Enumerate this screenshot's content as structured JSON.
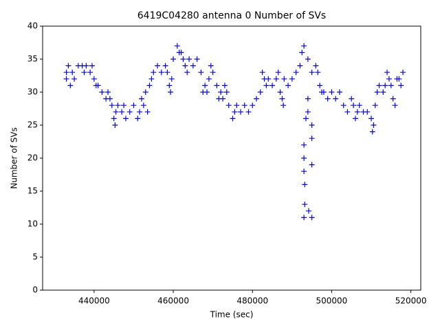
{
  "chart_data": {
    "type": "scatter",
    "title": "6419C04280 antenna 0 Number of SVs",
    "xlabel": "Time (sec)",
    "ylabel": "Number of SVs",
    "marker": "+",
    "color": "#0000ff",
    "xlim": [
      427000,
      522500
    ],
    "ylim": [
      0,
      40
    ],
    "xticks": [
      440000,
      460000,
      480000,
      500000,
      520000
    ],
    "yticks": [
      0,
      5,
      10,
      15,
      20,
      25,
      30,
      35,
      40
    ],
    "x": [
      433000,
      433000,
      433500,
      434000,
      434500,
      435000,
      436000,
      437000,
      437500,
      438000,
      439000,
      439500,
      440000,
      440500,
      441000,
      442000,
      443000,
      443500,
      444000,
      444500,
      445000,
      445300,
      445500,
      446000,
      447000,
      447500,
      448000,
      449000,
      450000,
      451000,
      451500,
      452000,
      452500,
      453000,
      453500,
      454000,
      454500,
      455000,
      456000,
      457000,
      458000,
      458500,
      459000,
      459300,
      459600,
      460000,
      461000,
      461500,
      462000,
      462500,
      463000,
      463500,
      464000,
      465000,
      466000,
      467000,
      467500,
      468000,
      468500,
      469000,
      469500,
      470000,
      471000,
      471500,
      472000,
      472500,
      473000,
      473500,
      474000,
      475000,
      475500,
      476000,
      477000,
      478000,
      479000,
      480000,
      481000,
      482000,
      482500,
      483000,
      483500,
      484000,
      485000,
      486000,
      486500,
      487000,
      487500,
      487800,
      488000,
      489000,
      490000,
      491000,
      492000,
      492500,
      493000,
      493000,
      493000,
      493000,
      493200,
      493000,
      493200,
      493500,
      494000,
      494000,
      494000,
      494200,
      495000,
      495000,
      495000,
      495000,
      495000,
      496000,
      496500,
      497000,
      497500,
      498000,
      499000,
      500000,
      501000,
      502000,
      503000,
      504000,
      505000,
      505500,
      506000,
      506500,
      507000,
      508000,
      509000,
      510000,
      510300,
      510600,
      511000,
      511500,
      512000,
      513000,
      513500,
      514000,
      514500,
      515000,
      515500,
      516000,
      516500,
      517000,
      517500,
      518000
    ],
    "values": [
      33,
      32,
      34,
      31,
      33,
      32,
      34,
      34,
      33,
      34,
      33,
      34,
      32,
      31,
      31,
      30,
      29,
      30,
      29,
      28,
      26,
      25,
      27,
      28,
      27,
      28,
      26,
      27,
      28,
      26,
      27,
      29,
      28,
      30,
      27,
      31,
      32,
      33,
      34,
      33,
      34,
      33,
      31,
      30,
      32,
      35,
      37,
      36,
      36,
      35,
      34,
      33,
      35,
      34,
      35,
      33,
      30,
      31,
      30,
      32,
      34,
      33,
      31,
      29,
      30,
      29,
      31,
      30,
      28,
      26,
      27,
      28,
      27,
      28,
      27,
      28,
      29,
      30,
      33,
      32,
      31,
      32,
      31,
      32,
      33,
      30,
      29,
      28,
      32,
      31,
      32,
      33,
      34,
      36,
      37,
      22,
      20,
      18,
      16,
      11,
      13,
      26,
      35,
      29,
      27,
      12,
      33,
      25,
      23,
      19,
      11,
      34,
      33,
      31,
      30,
      30,
      29,
      30,
      29,
      30,
      28,
      27,
      29,
      28,
      26,
      27,
      28,
      27,
      27,
      26,
      24,
      25,
      28,
      30,
      31,
      30,
      31,
      33,
      32,
      31,
      29,
      28,
      32,
      32,
      31,
      33
    ]
  }
}
